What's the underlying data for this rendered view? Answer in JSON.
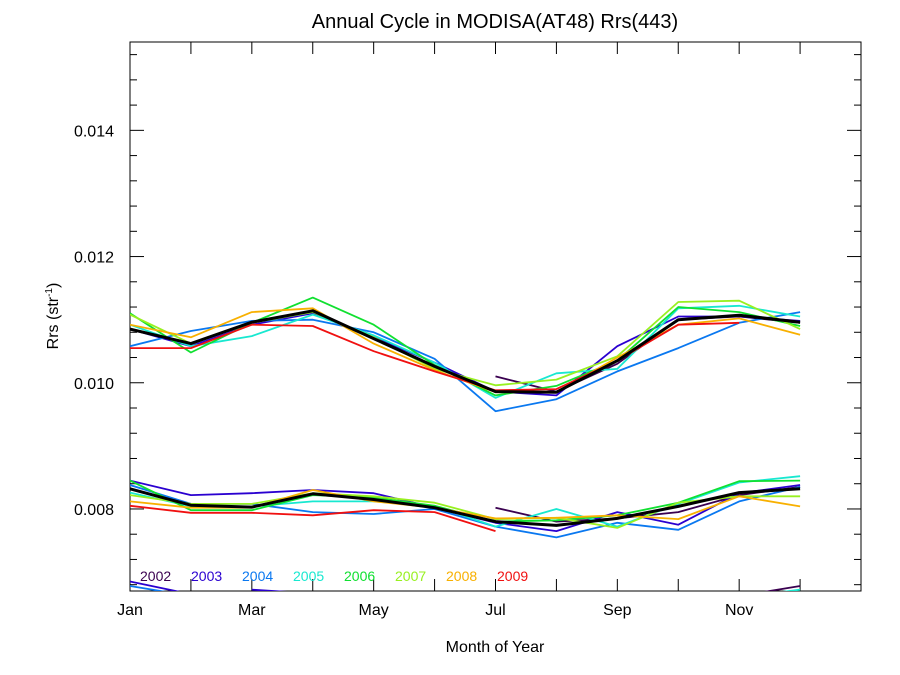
{
  "chart_data": {
    "type": "line",
    "title": "Annual Cycle in MODISA(AT48) Rrs(443)",
    "xlabel": "Month of Year",
    "ylabel_main": "Rrs (str",
    "ylabel_sup": "-1",
    "ylabel_end": ")",
    "xlim": [
      0,
      12
    ],
    "ylim": [
      0.0067,
      0.0154
    ],
    "x_ticks": [
      {
        "value": 0,
        "label": "Jan"
      },
      {
        "value": 2,
        "label": "Mar"
      },
      {
        "value": 4,
        "label": "May"
      },
      {
        "value": 6,
        "label": "Jul"
      },
      {
        "value": 8,
        "label": "Sep"
      },
      {
        "value": 10,
        "label": "Nov"
      }
    ],
    "y_ticks": [
      {
        "value": 0.008,
        "label": "0.008"
      },
      {
        "value": 0.01,
        "label": "0.010"
      },
      {
        "value": 0.012,
        "label": "0.012"
      },
      {
        "value": 0.014,
        "label": "0.014"
      }
    ],
    "x": [
      0,
      1,
      2,
      3,
      4,
      5,
      6,
      7,
      8,
      9,
      10,
      11
    ],
    "upper_group": [
      {
        "name": "2002",
        "color": "#3a0050",
        "values": [
          null,
          null,
          null,
          null,
          null,
          null,
          10.1,
          9.86,
          10.3,
          11.0,
          11.05,
          10.95
        ]
      },
      {
        "name": "2003",
        "color": "#2a00d0",
        "values": [
          10.85,
          10.58,
          10.92,
          11.1,
          10.72,
          10.32,
          9.86,
          9.8,
          10.58,
          11.05,
          11.05,
          10.98
        ]
      },
      {
        "name": "2004",
        "color": "#0a78f0",
        "values": [
          10.58,
          10.82,
          10.98,
          11.0,
          10.8,
          10.38,
          9.55,
          9.74,
          10.18,
          10.55,
          10.95,
          11.12
        ]
      },
      {
        "name": "2005",
        "color": "#18e8d0",
        "values": [
          10.92,
          10.58,
          10.74,
          11.08,
          10.75,
          10.32,
          9.76,
          10.15,
          10.22,
          11.18,
          11.22,
          11.05
        ]
      },
      {
        "name": "2006",
        "color": "#10e030",
        "values": [
          11.1,
          10.48,
          10.95,
          11.35,
          10.92,
          10.28,
          9.8,
          9.95,
          10.35,
          11.2,
          11.12,
          10.9
        ]
      },
      {
        "name": "2007",
        "color": "#98f020",
        "values": [
          11.08,
          10.62,
          10.95,
          11.12,
          10.72,
          10.22,
          9.96,
          10.05,
          10.42,
          11.28,
          11.3,
          10.85
        ]
      },
      {
        "name": "2008",
        "color": "#f8b000",
        "values": [
          10.92,
          10.72,
          11.12,
          11.18,
          10.62,
          10.2,
          9.85,
          9.85,
          10.4,
          10.92,
          11.02,
          10.76
        ]
      },
      {
        "name": "2009",
        "color": "#f01010",
        "values": [
          10.55,
          10.55,
          10.92,
          10.9,
          10.5,
          10.18,
          9.88,
          9.9,
          10.35,
          10.92,
          10.95,
          null
        ]
      },
      {
        "name": "mean",
        "color": "#000000",
        "values": [
          10.85,
          10.62,
          10.96,
          11.14,
          10.7,
          10.26,
          9.86,
          9.85,
          10.35,
          11.0,
          11.07,
          10.96
        ]
      }
    ],
    "lower_group": [
      {
        "name": "2002",
        "color": "#3a0050",
        "values": [
          null,
          null,
          null,
          null,
          null,
          null,
          8.02,
          7.8,
          7.85,
          7.95,
          8.22,
          8.35
        ]
      },
      {
        "name": "2003",
        "color": "#2a00d0",
        "values": [
          8.45,
          8.22,
          8.25,
          8.3,
          8.25,
          8.02,
          7.78,
          7.65,
          7.95,
          7.75,
          8.25,
          8.38
        ]
      },
      {
        "name": "2004",
        "color": "#0a78f0",
        "values": [
          8.38,
          8.08,
          8.08,
          7.95,
          7.92,
          8.0,
          7.72,
          7.55,
          7.78,
          7.67,
          8.12,
          8.35
        ]
      },
      {
        "name": "2005",
        "color": "#18e8d0",
        "values": [
          8.26,
          8.04,
          8.04,
          8.12,
          8.12,
          8.05,
          7.72,
          8.0,
          7.72,
          8.08,
          8.42,
          8.52
        ]
      },
      {
        "name": "2006",
        "color": "#10e030",
        "values": [
          8.45,
          7.98,
          7.98,
          8.22,
          8.18,
          8.05,
          7.8,
          7.82,
          7.9,
          8.1,
          8.44,
          8.45
        ]
      },
      {
        "name": "2007",
        "color": "#98f020",
        "values": [
          8.22,
          8.08,
          8.08,
          8.25,
          8.2,
          8.1,
          7.84,
          7.86,
          7.7,
          8.1,
          8.2,
          8.2
        ]
      },
      {
        "name": "2008",
        "color": "#f8b000",
        "values": [
          8.12,
          8.02,
          8.02,
          8.3,
          8.12,
          8.02,
          7.85,
          7.86,
          7.9,
          7.84,
          8.2,
          8.04
        ]
      },
      {
        "name": "2009",
        "color": "#f01010",
        "values": [
          8.05,
          7.94,
          7.94,
          7.9,
          7.98,
          7.95,
          7.65,
          null,
          null,
          null,
          null,
          null
        ]
      },
      {
        "name": "mean",
        "color": "#000000",
        "values": [
          8.32,
          8.06,
          8.03,
          8.24,
          8.15,
          8.02,
          7.8,
          7.74,
          7.85,
          8.04,
          8.26,
          8.32
        ]
      }
    ],
    "bottom_group": [
      {
        "name": "2003",
        "color": "#2a00d0",
        "values": [
          6.85,
          6.65,
          null,
          null,
          null,
          null,
          null,
          null,
          null,
          null,
          null,
          null
        ]
      },
      {
        "name": "2004",
        "color": "#0a78f0",
        "values": [
          6.78,
          6.62,
          null,
          null,
          null,
          null,
          null,
          null,
          null,
          null,
          null,
          null
        ]
      },
      {
        "name": "2003",
        "color": "#2a00d0",
        "values": [
          null,
          null,
          6.72,
          6.66,
          null,
          null,
          null,
          null,
          null,
          null,
          null,
          null
        ]
      },
      {
        "name": "2002",
        "color": "#3a0050",
        "values": [
          null,
          null,
          null,
          null,
          null,
          null,
          null,
          null,
          null,
          null,
          6.62,
          6.78
        ]
      },
      {
        "name": "2005",
        "color": "#18e8d0",
        "values": [
          null,
          null,
          null,
          null,
          null,
          null,
          null,
          null,
          null,
          null,
          6.6,
          6.72
        ]
      }
    ],
    "legend": [
      {
        "label": "2002",
        "color": "#3a0050"
      },
      {
        "label": "2003",
        "color": "#2a00d0"
      },
      {
        "label": "2004",
        "color": "#0a78f0"
      },
      {
        "label": "2005",
        "color": "#18e8d0"
      },
      {
        "label": "2006",
        "color": "#10e030"
      },
      {
        "label": "2007",
        "color": "#98f020"
      },
      {
        "label": "2008",
        "color": "#f8b000"
      },
      {
        "label": "2009",
        "color": "#f01010"
      }
    ],
    "legend_position": "bottom-left",
    "grid": false,
    "y_units_note": "series values are in units of 0.001 sr^-1"
  }
}
